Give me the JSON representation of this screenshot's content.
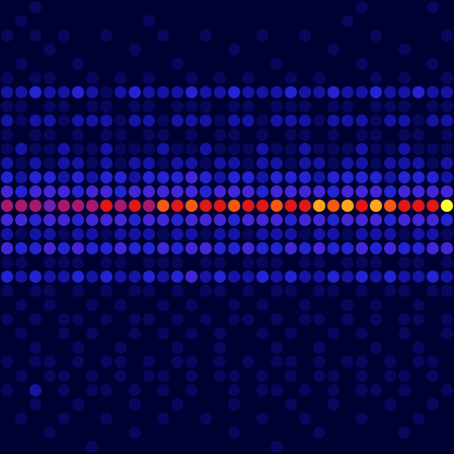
{
  "chart_data": {
    "type": "heatmap",
    "marker": "circle",
    "tick_labels": false,
    "zlim": [
      0,
      10
    ],
    "z": [
      [
        0,
        0,
        1,
        0,
        0,
        0,
        0,
        0,
        0,
        0,
        0,
        0,
        0,
        0,
        0,
        0,
        0,
        0,
        0,
        0,
        0,
        0,
        0,
        0,
        0,
        1,
        0,
        0,
        0,
        0,
        1,
        0
      ],
      [
        0,
        1,
        0,
        0,
        0,
        0,
        0,
        0,
        0,
        0,
        1,
        0,
        0,
        0,
        0,
        0,
        0,
        0,
        0,
        0,
        0,
        0,
        0,
        0,
        1,
        0,
        0,
        0,
        0,
        0,
        0,
        0
      ],
      [
        1,
        0,
        1,
        0,
        1,
        0,
        0,
        1,
        0,
        0,
        0,
        1,
        0,
        0,
        1,
        0,
        0,
        0,
        1,
        0,
        0,
        1,
        0,
        0,
        0,
        0,
        1,
        0,
        0,
        0,
        0,
        1
      ],
      [
        0,
        0,
        0,
        1,
        0,
        0,
        0,
        0,
        0,
        1,
        0,
        0,
        0,
        0,
        0,
        0,
        1,
        0,
        0,
        0,
        0,
        0,
        0,
        1,
        0,
        0,
        0,
        0,
        1,
        0,
        0,
        0
      ],
      [
        0,
        1,
        0,
        0,
        0,
        1,
        0,
        0,
        0,
        0,
        0,
        0,
        1,
        0,
        0,
        0,
        0,
        0,
        0,
        1,
        0,
        0,
        0,
        0,
        0,
        1,
        0,
        0,
        0,
        0,
        1,
        0
      ],
      [
        1,
        0,
        1,
        1,
        0,
        0,
        1,
        0,
        1,
        0,
        1,
        0,
        0,
        1,
        0,
        1,
        0,
        1,
        0,
        0,
        1,
        0,
        1,
        0,
        0,
        0,
        1,
        0,
        1,
        0,
        0,
        1
      ],
      [
        2,
        2,
        3,
        2,
        2,
        3,
        2,
        1,
        2,
        3,
        2,
        2,
        2,
        3,
        2,
        2,
        3,
        2,
        2,
        2,
        3,
        2,
        2,
        3,
        2,
        2,
        3,
        2,
        2,
        3,
        2,
        2
      ],
      [
        1,
        1,
        0,
        1,
        1,
        0,
        1,
        1,
        0,
        1,
        1,
        0,
        1,
        1,
        1,
        0,
        1,
        1,
        0,
        1,
        1,
        1,
        0,
        1,
        1,
        0,
        1,
        1,
        1,
        0,
        1,
        1
      ],
      [
        2,
        1,
        2,
        2,
        1,
        2,
        2,
        2,
        1,
        2,
        2,
        1,
        2,
        2,
        2,
        1,
        2,
        2,
        1,
        2,
        2,
        2,
        1,
        2,
        2,
        2,
        1,
        2,
        2,
        1,
        2,
        2
      ],
      [
        1,
        0,
        1,
        1,
        0,
        1,
        0,
        1,
        1,
        0,
        1,
        1,
        0,
        1,
        0,
        1,
        1,
        0,
        1,
        0,
        1,
        1,
        0,
        1,
        0,
        1,
        1,
        0,
        1,
        1,
        0,
        1
      ],
      [
        1,
        2,
        1,
        1,
        2,
        1,
        1,
        2,
        1,
        1,
        1,
        2,
        1,
        1,
        2,
        1,
        1,
        1,
        2,
        1,
        1,
        2,
        1,
        1,
        1,
        2,
        1,
        1,
        2,
        1,
        1,
        1
      ],
      [
        2,
        1,
        2,
        1,
        2,
        2,
        1,
        2,
        1,
        2,
        2,
        1,
        2,
        2,
        1,
        2,
        2,
        1,
        2,
        2,
        1,
        2,
        2,
        1,
        2,
        2,
        1,
        2,
        2,
        2,
        1,
        2
      ],
      [
        3,
        2,
        3,
        3,
        2,
        3,
        2,
        3,
        3,
        2,
        3,
        3,
        3,
        4,
        3,
        2,
        3,
        3,
        2,
        3,
        3,
        3,
        2,
        3,
        3,
        3,
        3,
        2,
        3,
        3,
        3,
        2
      ],
      [
        4,
        3,
        4,
        4,
        4,
        3,
        4,
        4,
        3,
        4,
        4,
        4,
        4,
        4,
        3,
        4,
        4,
        4,
        3,
        4,
        4,
        4,
        4,
        3,
        4,
        4,
        4,
        3,
        4,
        4,
        4,
        4
      ],
      [
        6,
        6,
        6,
        5,
        6,
        6,
        6,
        7,
        6,
        7,
        6,
        8,
        7,
        8,
        7,
        7,
        8,
        7,
        7,
        8,
        7,
        7,
        9,
        8,
        9,
        7,
        9,
        8,
        7,
        7,
        7,
        10
      ],
      [
        4,
        4,
        3,
        4,
        4,
        3,
        4,
        4,
        4,
        3,
        4,
        4,
        3,
        4,
        4,
        4,
        3,
        4,
        4,
        4,
        3,
        4,
        4,
        3,
        4,
        4,
        4,
        3,
        4,
        4,
        4,
        3
      ],
      [
        2,
        1,
        2,
        2,
        1,
        2,
        2,
        1,
        2,
        2,
        2,
        1,
        2,
        2,
        1,
        2,
        2,
        1,
        2,
        2,
        2,
        1,
        2,
        2,
        1,
        2,
        2,
        2,
        1,
        2,
        2,
        1
      ],
      [
        4,
        3,
        3,
        4,
        3,
        4,
        3,
        3,
        4,
        3,
        3,
        4,
        3,
        4,
        4,
        3,
        3,
        4,
        3,
        3,
        4,
        3,
        4,
        3,
        3,
        4,
        3,
        4,
        3,
        3,
        4,
        4
      ],
      [
        1,
        1,
        0,
        1,
        1,
        1,
        0,
        1,
        1,
        0,
        1,
        1,
        1,
        0,
        1,
        1,
        0,
        1,
        1,
        1,
        0,
        1,
        1,
        0,
        1,
        1,
        1,
        0,
        1,
        1,
        0,
        1
      ],
      [
        3,
        2,
        3,
        2,
        2,
        3,
        2,
        3,
        2,
        2,
        3,
        2,
        3,
        4,
        2,
        3,
        2,
        2,
        3,
        2,
        3,
        2,
        2,
        3,
        2,
        3,
        2,
        3,
        2,
        2,
        3,
        2
      ],
      [
        1,
        0,
        1,
        1,
        0,
        1,
        0,
        1,
        0,
        1,
        1,
        0,
        1,
        0,
        1,
        1,
        0,
        1,
        0,
        1,
        1,
        0,
        1,
        1,
        0,
        1,
        0,
        1,
        1,
        0,
        1,
        1
      ],
      [
        0,
        1,
        0,
        1,
        0,
        0,
        1,
        0,
        1,
        0,
        0,
        1,
        0,
        1,
        0,
        0,
        1,
        0,
        1,
        0,
        0,
        1,
        0,
        0,
        1,
        0,
        1,
        0,
        0,
        1,
        0,
        0
      ],
      [
        1,
        0,
        1,
        0,
        1,
        1,
        0,
        1,
        0,
        1,
        1,
        0,
        1,
        0,
        1,
        0,
        1,
        1,
        0,
        1,
        0,
        1,
        1,
        0,
        1,
        0,
        1,
        0,
        1,
        1,
        0,
        1
      ],
      [
        0,
        1,
        0,
        0,
        1,
        0,
        1,
        0,
        0,
        1,
        0,
        1,
        0,
        1,
        0,
        1,
        0,
        0,
        1,
        0,
        1,
        0,
        0,
        1,
        0,
        1,
        0,
        0,
        1,
        0,
        0,
        1
      ],
      [
        0,
        0,
        1,
        0,
        0,
        1,
        0,
        0,
        1,
        0,
        0,
        0,
        1,
        0,
        0,
        1,
        0,
        0,
        0,
        1,
        0,
        0,
        1,
        0,
        0,
        0,
        1,
        0,
        0,
        1,
        0,
        0
      ],
      [
        1,
        0,
        1,
        1,
        0,
        1,
        0,
        1,
        1,
        0,
        1,
        0,
        1,
        1,
        0,
        1,
        0,
        1,
        0,
        1,
        1,
        0,
        1,
        0,
        1,
        1,
        0,
        1,
        0,
        1,
        1,
        0
      ],
      [
        0,
        1,
        0,
        1,
        1,
        0,
        1,
        0,
        1,
        0,
        1,
        1,
        0,
        1,
        0,
        1,
        1,
        0,
        1,
        0,
        1,
        0,
        1,
        1,
        0,
        1,
        0,
        1,
        1,
        0,
        1,
        0
      ],
      [
        1,
        0,
        2,
        0,
        1,
        0,
        1,
        1,
        0,
        1,
        0,
        1,
        0,
        1,
        0,
        0,
        1,
        0,
        1,
        1,
        0,
        1,
        0,
        1,
        0,
        1,
        1,
        0,
        1,
        0,
        0,
        1
      ],
      [
        0,
        0,
        1,
        0,
        0,
        1,
        0,
        0,
        0,
        1,
        0,
        0,
        1,
        0,
        0,
        0,
        1,
        0,
        0,
        0,
        1,
        0,
        0,
        1,
        0,
        0,
        0,
        1,
        0,
        0,
        1,
        0
      ],
      [
        0,
        1,
        0,
        0,
        1,
        0,
        0,
        1,
        0,
        0,
        0,
        1,
        0,
        0,
        1,
        0,
        0,
        0,
        1,
        0,
        0,
        1,
        0,
        0,
        0,
        1,
        0,
        0,
        0,
        1,
        0,
        0
      ],
      [
        0,
        0,
        0,
        1,
        0,
        0,
        0,
        0,
        0,
        1,
        0,
        0,
        0,
        0,
        0,
        0,
        1,
        0,
        0,
        0,
        0,
        0,
        1,
        0,
        0,
        0,
        0,
        0,
        1,
        0,
        0,
        0
      ],
      [
        0,
        0,
        0,
        0,
        0,
        0,
        1,
        0,
        0,
        0,
        0,
        0,
        0,
        0,
        0,
        0,
        0,
        0,
        0,
        1,
        0,
        0,
        0,
        0,
        0,
        0,
        0,
        0,
        0,
        0,
        0,
        0
      ]
    ]
  }
}
